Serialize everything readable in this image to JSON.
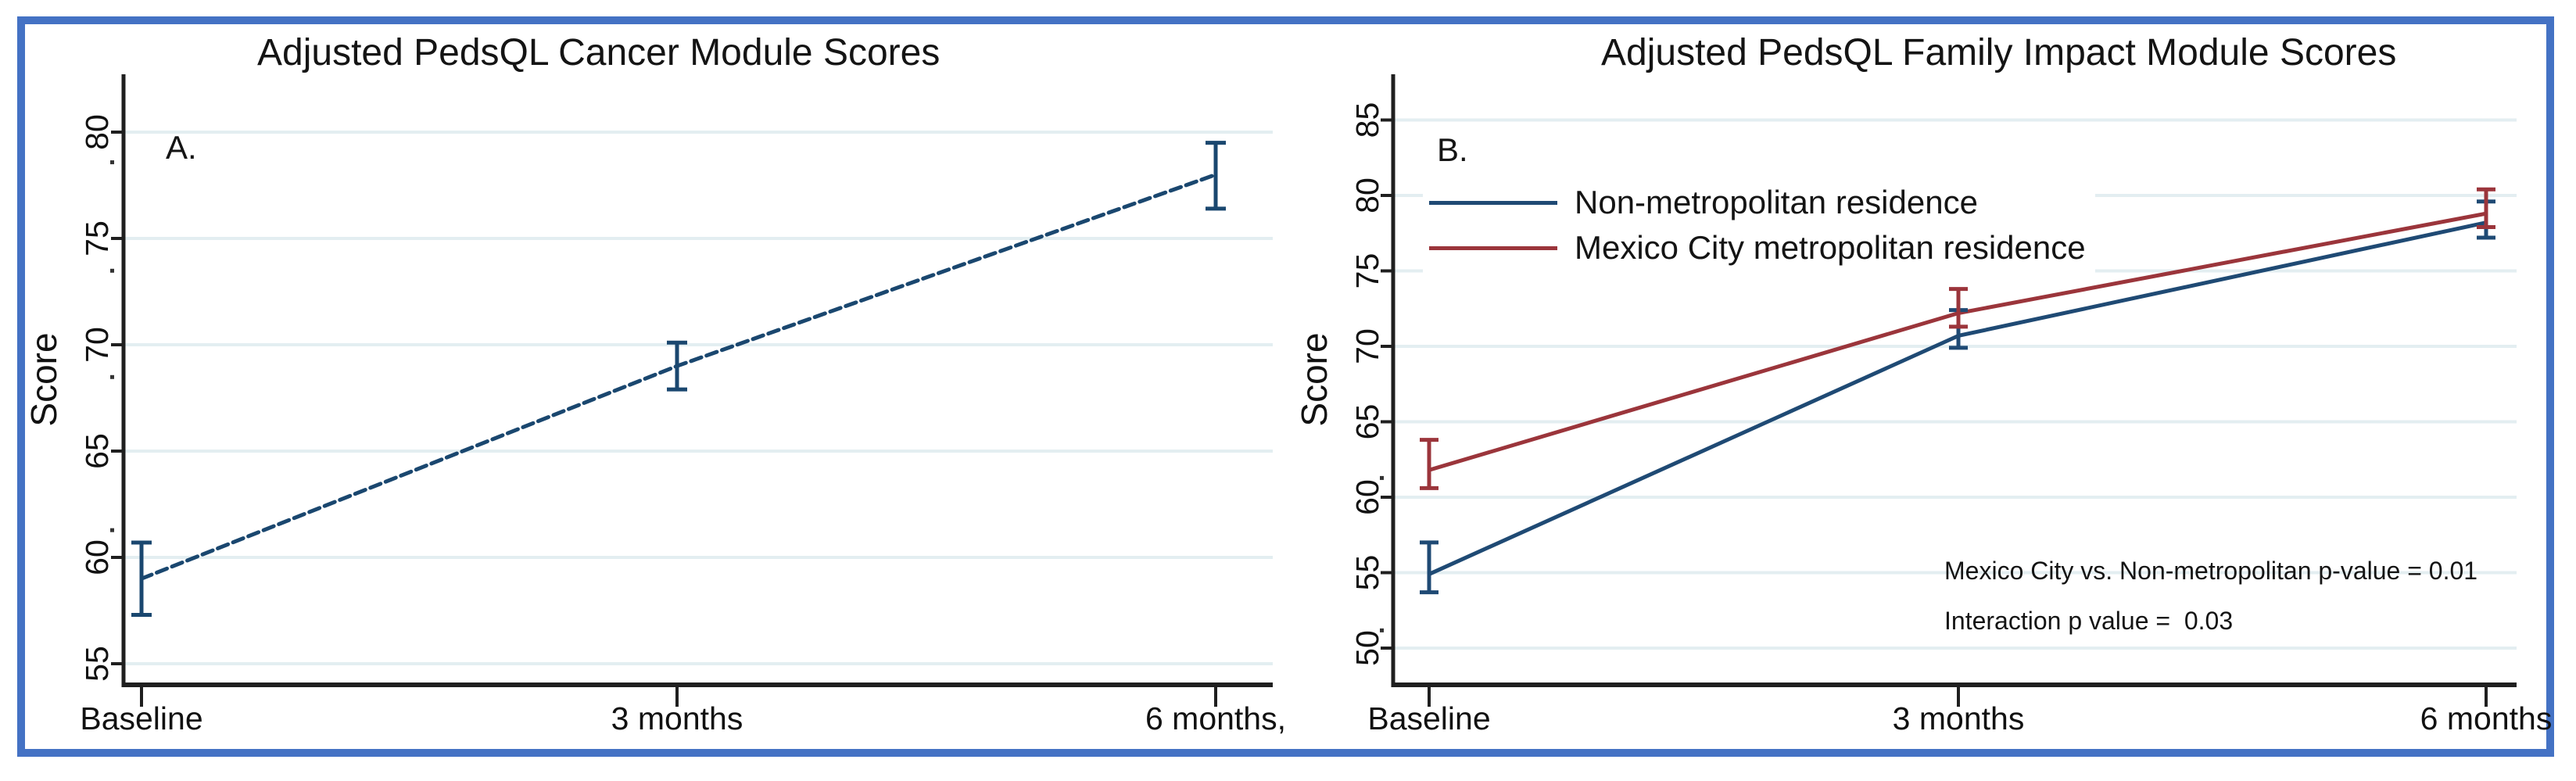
{
  "figure": {
    "border_color": "#4472c4",
    "background_color": "#ffffff",
    "gridline_color": "#e3eef1",
    "axis_color": "#1f1f1f",
    "navy_color": "#1a476f",
    "maroon_color": "#9b353b"
  },
  "chart_data": [
    {
      "type": "line",
      "panel_label": "A.",
      "title": "Adjusted PedsQL Cancer Module Scores",
      "xlabel": "",
      "ylabel": "Score",
      "categories": [
        "Baseline",
        "3 months",
        "6 months,"
      ],
      "yticks": [
        55,
        60,
        65,
        70,
        75,
        80
      ],
      "ylim": [
        54.2,
        81.2
      ],
      "grid": true,
      "legend_position": "none",
      "minor_dot_values": [
        78.6,
        73.5,
        68.5,
        61.3
      ],
      "series": [
        {
          "name": "PedsQL Cancer Module",
          "color": "#1a476f",
          "line_style": "dashed",
          "values": [
            59.0,
            69.0,
            78.0
          ],
          "ci_low": [
            57.3,
            67.9,
            76.4
          ],
          "ci_high": [
            60.7,
            70.1,
            79.5
          ]
        }
      ],
      "annotations": []
    },
    {
      "type": "line",
      "panel_label": "B.",
      "title": "Adjusted PedsQL Family Impact Module Scores",
      "xlabel": "",
      "ylabel": "Score",
      "categories": [
        "Baseline",
        "3 months",
        "6 months"
      ],
      "yticks": [
        50,
        55,
        60,
        65,
        70,
        75,
        80,
        85
      ],
      "ylim": [
        47.6,
        88.0
      ],
      "grid": true,
      "legend_position": "upper-left-inside",
      "minor_dot_values": [
        61.3,
        51.2
      ],
      "series": [
        {
          "name": "Non-metropolitan residence",
          "color": "#1f4a74",
          "line_style": "solid",
          "values": [
            54.9,
            70.7,
            78.2
          ],
          "ci_low": [
            53.7,
            69.9,
            77.2
          ],
          "ci_high": [
            57.0,
            72.4,
            79.6
          ]
        },
        {
          "name": "Mexico City metropolitan residence",
          "color": "#9b353b",
          "line_style": "solid",
          "values": [
            61.8,
            72.2,
            78.8
          ],
          "ci_low": [
            60.6,
            71.3,
            77.9
          ],
          "ci_high": [
            63.8,
            73.8,
            80.4
          ]
        }
      ],
      "annotations": [
        "Mexico City vs. Non-metropolitan p-value = 0.01",
        "Interaction p value =  0.03"
      ]
    }
  ]
}
